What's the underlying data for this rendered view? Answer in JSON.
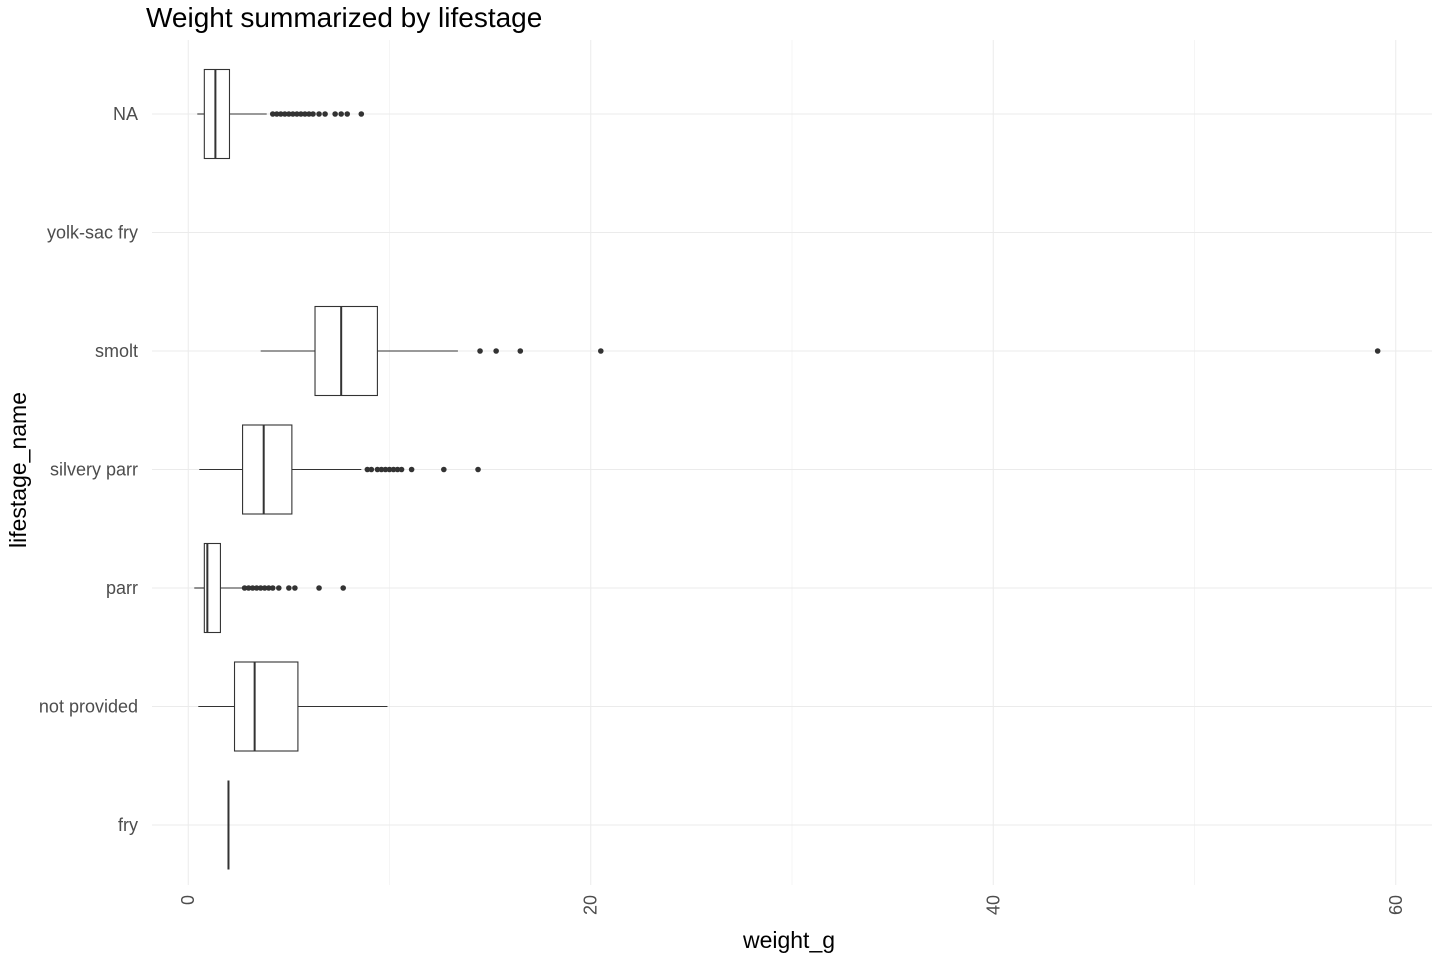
{
  "chart_data": {
    "type": "box",
    "orientation": "horizontal",
    "title": "Weight summarized by lifestage",
    "xlabel": "weight_g",
    "ylabel": "lifestage_name",
    "xlim": [
      -1.8,
      61.8
    ],
    "x_ticks": [
      0,
      20,
      40,
      60
    ],
    "grid": true,
    "categories": [
      "fry",
      "not provided",
      "parr",
      "silvery parr",
      "smolt",
      "yolk-sac fry",
      "NA"
    ],
    "series": [
      {
        "category": "NA",
        "box": {
          "min": 0.45,
          "q1": 0.8,
          "median": 1.35,
          "q3": 2.05,
          "max": 3.9
        },
        "outliers": [
          4.2,
          4.4,
          4.6,
          4.8,
          5.0,
          5.2,
          5.4,
          5.6,
          5.8,
          6.0,
          6.2,
          6.5,
          6.8,
          7.3,
          7.6,
          7.9,
          8.6
        ]
      },
      {
        "category": "yolk-sac fry",
        "box": null,
        "outliers": []
      },
      {
        "category": "smolt",
        "box": {
          "min": 3.6,
          "q1": 6.3,
          "median": 7.6,
          "q3": 9.4,
          "max": 13.4
        },
        "outliers": [
          14.5,
          15.3,
          16.5,
          20.5,
          59.1
        ]
      },
      {
        "category": "silvery parr",
        "box": {
          "min": 0.55,
          "q1": 2.7,
          "median": 3.75,
          "q3": 5.15,
          "max": 8.6
        },
        "outliers": [
          8.9,
          9.1,
          9.4,
          9.6,
          9.8,
          10.0,
          10.2,
          10.4,
          10.6,
          11.1,
          12.7,
          14.4
        ]
      },
      {
        "category": "parr",
        "box": {
          "min": 0.3,
          "q1": 0.8,
          "median": 0.95,
          "q3": 1.6,
          "max": 2.7
        },
        "outliers": [
          2.8,
          3.0,
          3.2,
          3.4,
          3.6,
          3.8,
          4.0,
          4.2,
          4.5,
          5.0,
          5.3,
          6.5,
          7.7
        ]
      },
      {
        "category": "not provided",
        "box": {
          "min": 0.5,
          "q1": 2.3,
          "median": 3.3,
          "q3": 5.45,
          "max": 9.9
        },
        "outliers": []
      },
      {
        "category": "fry",
        "box": {
          "min": 2.0,
          "q1": 2.0,
          "median": 2.0,
          "q3": 2.0,
          "max": 2.0
        },
        "outliers": []
      }
    ]
  }
}
